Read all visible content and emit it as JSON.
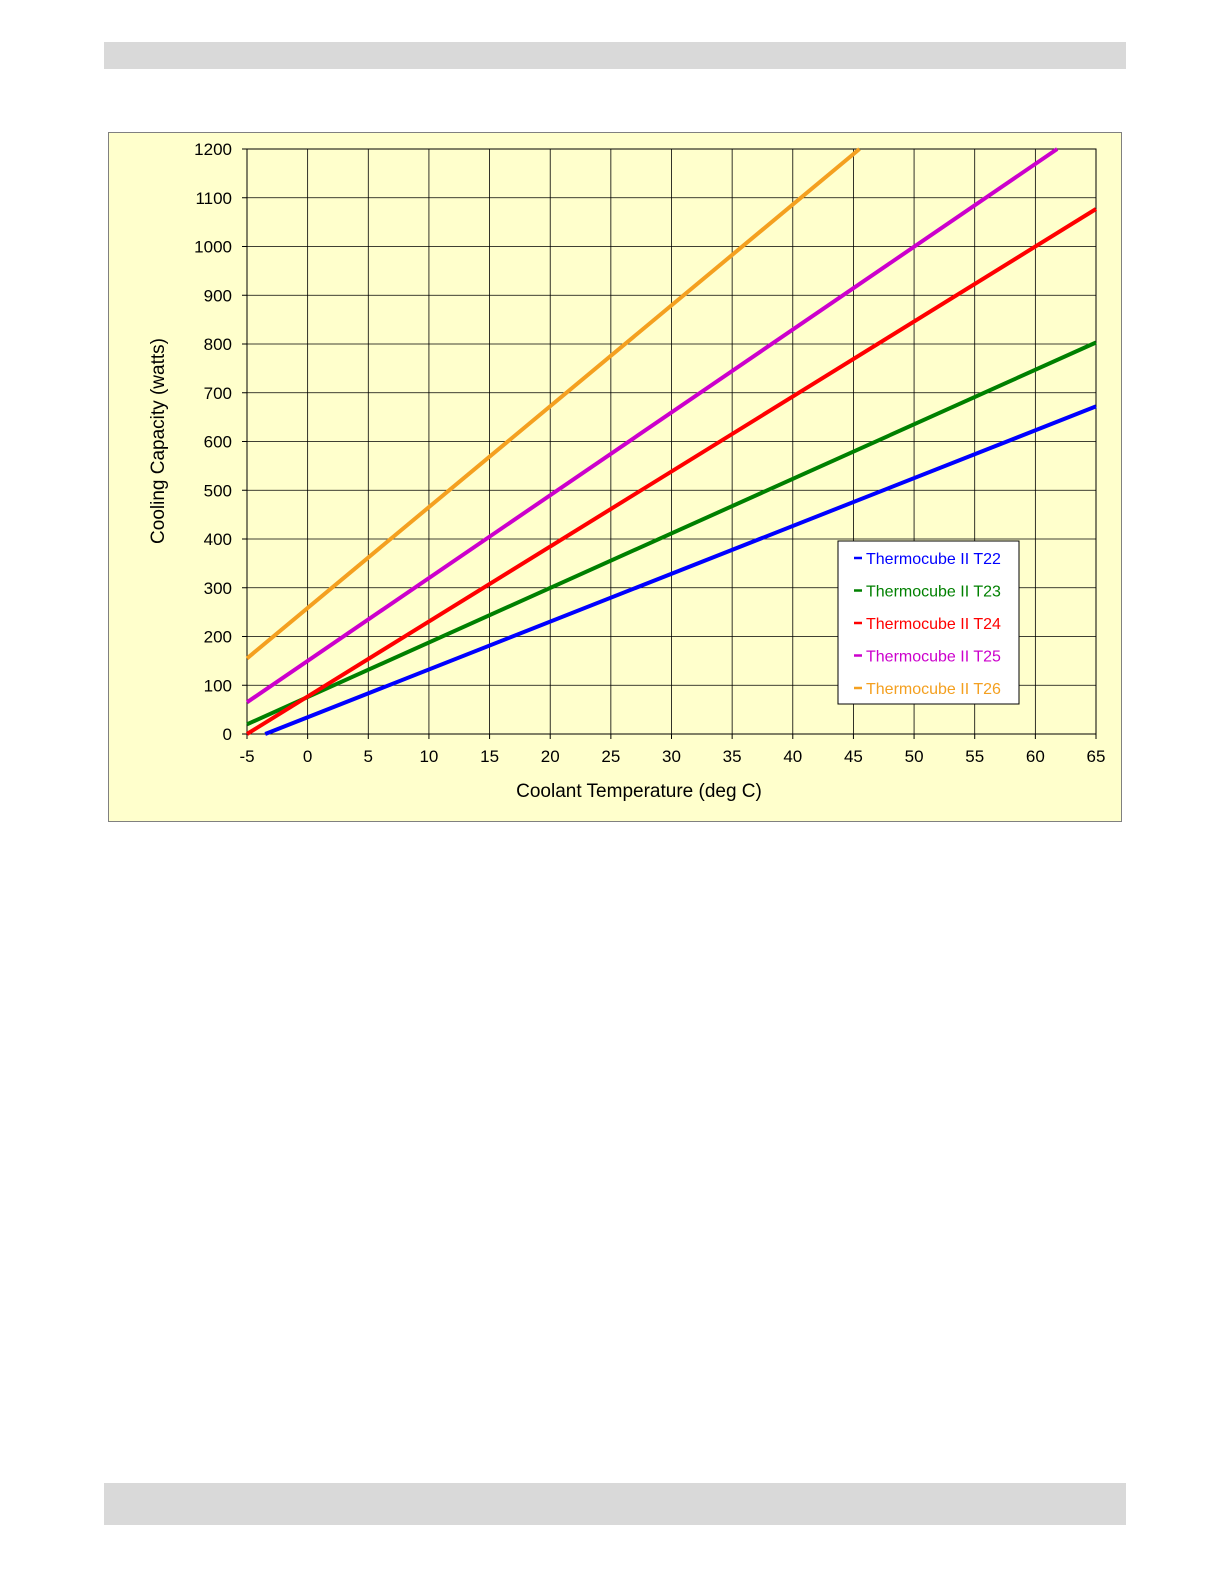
{
  "chart_data": {
    "type": "line",
    "title": "",
    "xlabel": "Coolant Temperature (deg C)",
    "ylabel": "Cooling Capacity (watts)",
    "xlim": [
      -5,
      65
    ],
    "ylim": [
      0,
      1200
    ],
    "x_ticks": [
      "-5",
      "0",
      "5",
      "10",
      "15",
      "20",
      "25",
      "30",
      "35",
      "40",
      "45",
      "50",
      "55",
      "60",
      "65"
    ],
    "y_ticks": [
      "0",
      "100",
      "200",
      "300",
      "400",
      "500",
      "600",
      "700",
      "800",
      "900",
      "1000",
      "1100",
      "1200"
    ],
    "grid": true,
    "legend_position": "lower-right",
    "background_color": "#ffffcc",
    "series": [
      {
        "name": "Thermocube II T22",
        "color": "#0000ff",
        "x": [
          -3.5,
          65
        ],
        "y": [
          0,
          672
        ]
      },
      {
        "name": "Thermocube II T23",
        "color": "#008000",
        "x": [
          -5,
          65
        ],
        "y": [
          20,
          803
        ]
      },
      {
        "name": "Thermocube II T24",
        "color": "#ff0000",
        "x": [
          -5,
          65
        ],
        "y": [
          0,
          1077
        ]
      },
      {
        "name": "Thermocube II T25",
        "color": "#cc00cc",
        "x": [
          -5,
          61.8
        ],
        "y": [
          65,
          1200
        ]
      },
      {
        "name": "Thermocube II T26",
        "color": "#f4a020",
        "x": [
          -5,
          45.5
        ],
        "y": [
          155,
          1200
        ]
      }
    ]
  }
}
